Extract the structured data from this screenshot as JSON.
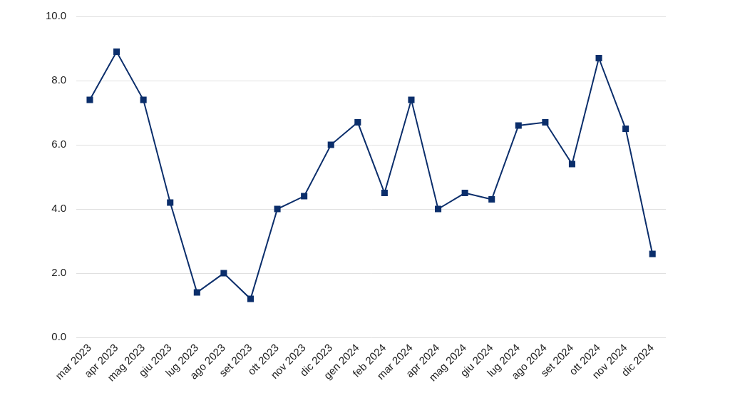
{
  "chart_data": {
    "type": "line",
    "categories": [
      "mar 2023",
      "apr 2023",
      "mag 2023",
      "giu 2023",
      "lug 2023",
      "ago 2023",
      "set 2023",
      "ott 2023",
      "nov 2023",
      "dic 2023",
      "gen 2024",
      "feb 2024",
      "mar 2024",
      "apr 2024",
      "mag 2024",
      "giu 2024",
      "lug 2024",
      "ago 2024",
      "set 2024",
      "ott 2024",
      "nov 2024",
      "dic 2024"
    ],
    "values": [
      7.4,
      8.9,
      7.4,
      4.2,
      1.4,
      2.0,
      1.2,
      4.0,
      4.4,
      6.0,
      6.7,
      4.5,
      7.4,
      4.0,
      4.5,
      4.3,
      6.6,
      6.7,
      5.4,
      8.7,
      6.5,
      2.6
    ],
    "color": "#0b2e6b",
    "marker": "square",
    "ylim": [
      0,
      10
    ],
    "yticks": [
      {
        "value": 0,
        "label": "0.0"
      },
      {
        "value": 2,
        "label": "2.0"
      },
      {
        "value": 4,
        "label": "4.0"
      },
      {
        "value": 6,
        "label": "6.0"
      },
      {
        "value": 8,
        "label": "8.0"
      },
      {
        "value": 10,
        "label": "10.0"
      }
    ],
    "grid": true
  }
}
